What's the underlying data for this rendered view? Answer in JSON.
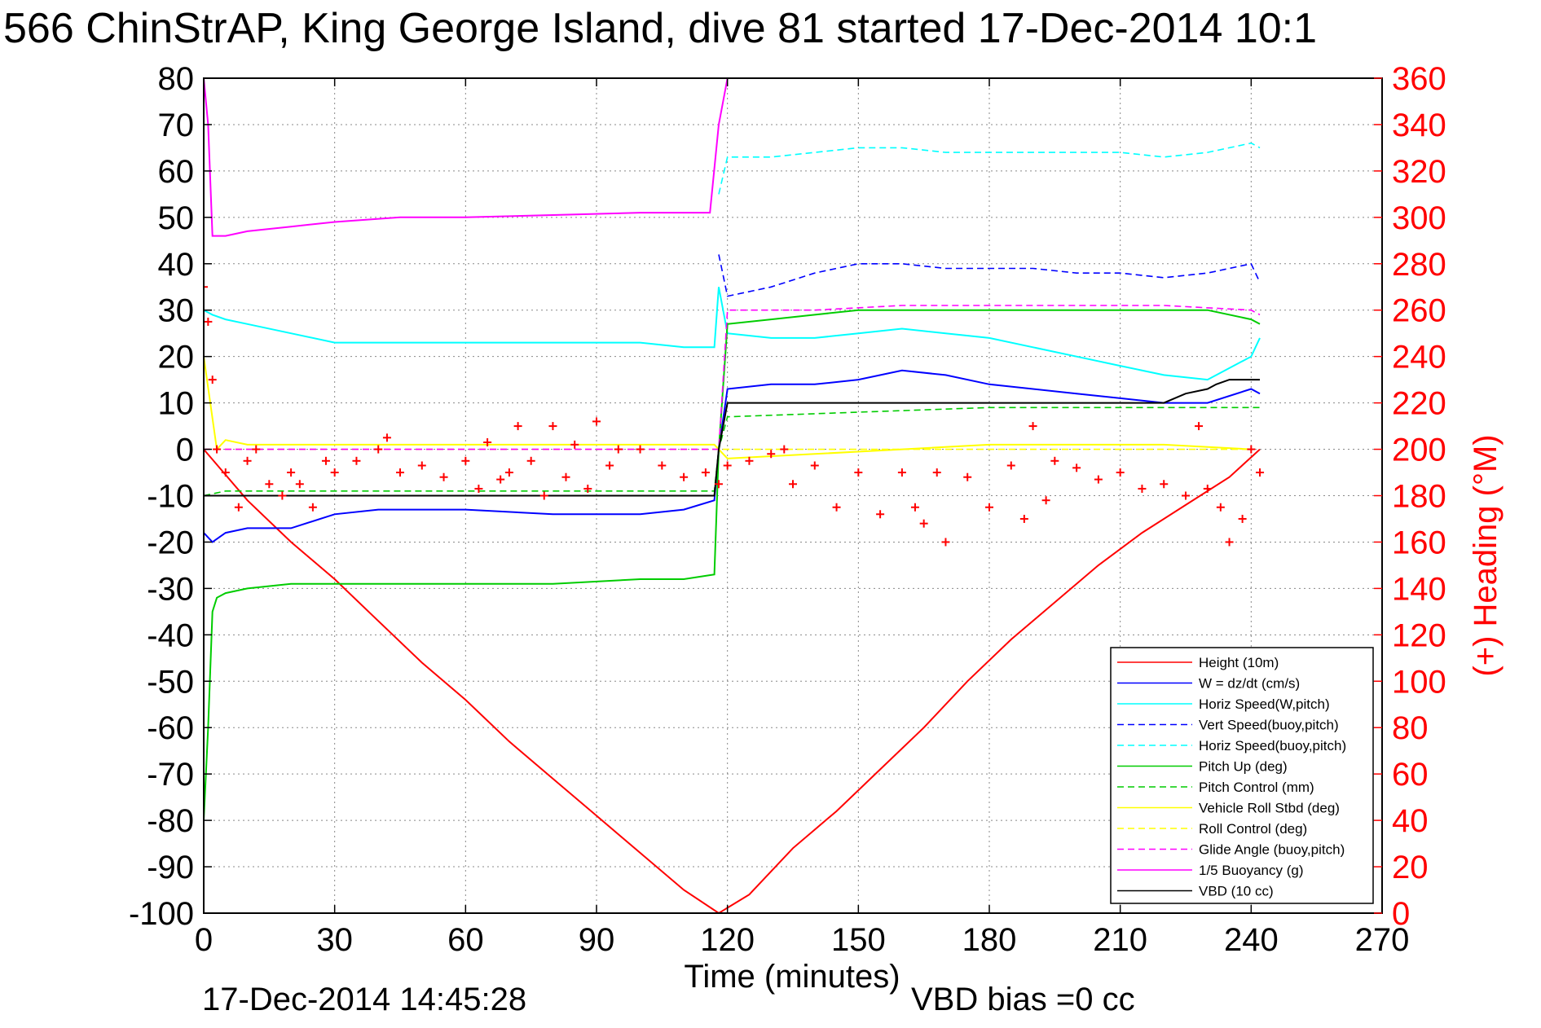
{
  "chart_data": {
    "type": "line",
    "title": "566 ChinStrAP, King George Island, dive 81 started 17-Dec-2014 10:1",
    "xlabel": "Time (minutes)",
    "ylabel": "",
    "ylabel_right": "(+) Heading (°M)",
    "xlim": [
      0,
      270
    ],
    "ylim": [
      -100,
      80
    ],
    "ylim_right": [
      0,
      360
    ],
    "x_ticks": [
      0,
      30,
      60,
      90,
      120,
      150,
      180,
      210,
      240,
      270
    ],
    "y_ticks": [
      80,
      70,
      60,
      50,
      40,
      30,
      20,
      10,
      0,
      -10,
      -20,
      -30,
      -40,
      -50,
      -60,
      -70,
      -80,
      -90,
      -100
    ],
    "y_ticks_right": [
      360,
      340,
      320,
      300,
      280,
      260,
      240,
      220,
      200,
      180,
      160,
      140,
      120,
      100,
      80,
      60,
      40,
      20,
      0
    ],
    "grid": true,
    "legend_position": "bottom-right",
    "footer_left": "17-Dec-2014 14:45:28",
    "footer_right": "VBD bias =0 cc",
    "series": [
      {
        "name": "Height (10m)",
        "color": "#ff0000",
        "style": "solid",
        "x": [
          0,
          10,
          20,
          30,
          40,
          50,
          60,
          70,
          80,
          90,
          100,
          110,
          118,
          125,
          135,
          145,
          155,
          165,
          175,
          185,
          195,
          205,
          215,
          225,
          235,
          242
        ],
        "y": [
          0,
          -11,
          -20,
          -28,
          -37,
          -46,
          -54,
          -63,
          -71,
          -79,
          -87,
          -95,
          -100,
          -96,
          -86,
          -78,
          -69,
          -60,
          -50,
          -41,
          -33,
          -25,
          -18,
          -12,
          -6,
          0
        ]
      },
      {
        "name": "W = dz/dt (cm/s)",
        "color": "#0000ff",
        "style": "solid",
        "x": [
          0,
          2,
          5,
          10,
          20,
          30,
          40,
          60,
          80,
          100,
          110,
          117,
          118,
          120,
          130,
          140,
          150,
          160,
          170,
          180,
          190,
          200,
          210,
          220,
          230,
          240,
          242
        ],
        "y": [
          -18,
          -20,
          -18,
          -17,
          -17,
          -14,
          -13,
          -13,
          -14,
          -14,
          -13,
          -11,
          0,
          13,
          14,
          14,
          15,
          17,
          16,
          14,
          13,
          12,
          11,
          10,
          10,
          13,
          12
        ]
      },
      {
        "name": "Horiz Speed(W,pitch)",
        "color": "#00ffff",
        "style": "solid",
        "x": [
          0,
          2,
          5,
          10,
          20,
          30,
          40,
          60,
          80,
          100,
          110,
          117,
          118,
          120,
          130,
          140,
          150,
          160,
          170,
          180,
          190,
          200,
          210,
          220,
          230,
          240,
          242
        ],
        "y": [
          30,
          29,
          28,
          27,
          25,
          23,
          23,
          23,
          23,
          23,
          22,
          22,
          35,
          25,
          24,
          24,
          25,
          26,
          25,
          24,
          22,
          20,
          18,
          16,
          15,
          20,
          24
        ]
      },
      {
        "name": "Vert Speed(buoy,pitch)",
        "color": "#0000ff",
        "style": "dashed",
        "x": [
          118,
          120,
          130,
          140,
          150,
          160,
          170,
          180,
          190,
          200,
          210,
          220,
          230,
          240,
          242
        ],
        "y": [
          42,
          33,
          35,
          38,
          40,
          40,
          39,
          39,
          39,
          38,
          38,
          37,
          38,
          40,
          36
        ]
      },
      {
        "name": "Horiz Speed(buoy,pitch)",
        "color": "#00ffff",
        "style": "dashed",
        "x": [
          118,
          120,
          130,
          140,
          150,
          160,
          170,
          180,
          190,
          200,
          210,
          220,
          230,
          240,
          242
        ],
        "y": [
          55,
          63,
          63,
          64,
          65,
          65,
          64,
          64,
          64,
          64,
          64,
          63,
          64,
          66,
          65
        ]
      },
      {
        "name": "Pitch Up (deg)",
        "color": "#00cc00",
        "style": "solid",
        "x": [
          0,
          1,
          2,
          3,
          5,
          10,
          20,
          30,
          40,
          60,
          80,
          100,
          110,
          117,
          118,
          120,
          130,
          140,
          150,
          160,
          170,
          180,
          190,
          200,
          210,
          220,
          230,
          240,
          242
        ],
        "y": [
          -80,
          -60,
          -35,
          -32,
          -31,
          -30,
          -29,
          -29,
          -29,
          -29,
          -29,
          -28,
          -28,
          -27,
          0,
          27,
          28,
          29,
          30,
          30,
          30,
          30,
          30,
          30,
          30,
          30,
          30,
          28,
          27
        ]
      },
      {
        "name": "Pitch Control (mm)",
        "color": "#00cc00",
        "style": "dashed",
        "x": [
          0,
          5,
          10,
          30,
          60,
          90,
          117,
          118,
          120,
          150,
          180,
          210,
          240,
          242
        ],
        "y": [
          -10,
          -9,
          -9,
          -9,
          -9,
          -9,
          -9,
          0,
          7,
          8,
          9,
          9,
          9,
          9
        ]
      },
      {
        "name": "Vehicle Roll Stbd (deg)",
        "color": "#ffff00",
        "style": "solid",
        "x": [
          0,
          3,
          5,
          10,
          20,
          30,
          40,
          60,
          80,
          100,
          117,
          120,
          140,
          160,
          180,
          200,
          220,
          240
        ],
        "y": [
          20,
          0,
          2,
          1,
          1,
          1,
          1,
          1,
          1,
          1,
          1,
          -2,
          -1,
          0,
          1,
          1,
          1,
          0
        ]
      },
      {
        "name": "Roll Control (deg)",
        "color": "#ffff00",
        "style": "dashed",
        "x": [
          0,
          5,
          30,
          60,
          90,
          117,
          120,
          150,
          180,
          210,
          240
        ],
        "y": [
          0,
          0,
          0,
          0,
          0,
          0,
          0,
          0,
          0,
          0,
          0
        ]
      },
      {
        "name": "Glide Angle (buoy,pitch)",
        "color": "#ff00ff",
        "style": "dashed",
        "x": [
          0,
          30,
          60,
          90,
          117,
          118,
          120,
          140,
          160,
          180,
          200,
          220,
          240,
          242
        ],
        "y": [
          0,
          0,
          0,
          0,
          0,
          0,
          30,
          30,
          31,
          31,
          31,
          31,
          30,
          29
        ]
      },
      {
        "name": "1/5 Buoyancy (g)",
        "color": "#ff00ff",
        "style": "solid",
        "x": [
          0,
          1,
          2,
          5,
          10,
          20,
          30,
          45,
          60,
          80,
          100,
          110,
          116,
          118,
          120
        ],
        "y": [
          80,
          70,
          46,
          46,
          47,
          48,
          49,
          50,
          50,
          50.5,
          51,
          51,
          51,
          70,
          80
        ]
      },
      {
        "name": "VBD (10 cc)",
        "color": "#000000",
        "style": "solid",
        "x": [
          0,
          1,
          2,
          5,
          10,
          30,
          60,
          90,
          117,
          118,
          120,
          130,
          140,
          150,
          180,
          210,
          220,
          225,
          230,
          232,
          235,
          240,
          242
        ],
        "y": [
          -10,
          -10,
          -10,
          -10,
          -10,
          -10,
          -10,
          -10,
          -10,
          0,
          10,
          10,
          10,
          10,
          10,
          10,
          10,
          12,
          13,
          14,
          15,
          15,
          15
        ]
      }
    ],
    "heading_series": {
      "name": "Heading",
      "color": "#ff0000",
      "marker": "+",
      "x": [
        0,
        1,
        2,
        3,
        5,
        8,
        10,
        12,
        15,
        18,
        20,
        22,
        25,
        28,
        30,
        35,
        40,
        42,
        45,
        50,
        55,
        60,
        63,
        65,
        68,
        70,
        72,
        75,
        78,
        80,
        83,
        85,
        88,
        90,
        93,
        95,
        100,
        105,
        110,
        115,
        118,
        120,
        125,
        130,
        133,
        135,
        140,
        145,
        150,
        155,
        160,
        163,
        165,
        168,
        170,
        175,
        180,
        185,
        188,
        190,
        193,
        195,
        200,
        205,
        210,
        215,
        220,
        225,
        228,
        230,
        233,
        235,
        238,
        240,
        242
      ],
      "y": [
        270,
        255,
        230,
        200,
        190,
        175,
        195,
        200,
        185,
        180,
        190,
        185,
        175,
        195,
        190,
        195,
        200,
        205,
        190,
        193,
        188,
        195,
        183,
        203,
        187,
        190,
        210,
        195,
        180,
        210,
        188,
        202,
        183,
        212,
        193,
        200,
        200,
        193,
        188,
        190,
        185,
        193,
        195,
        198,
        200,
        185,
        193,
        175,
        190,
        172,
        190,
        175,
        168,
        190,
        160,
        188,
        175,
        193,
        170,
        210,
        178,
        195,
        192,
        187,
        190,
        183,
        185,
        180,
        210,
        183,
        175,
        160,
        170,
        200,
        190
      ]
    }
  }
}
